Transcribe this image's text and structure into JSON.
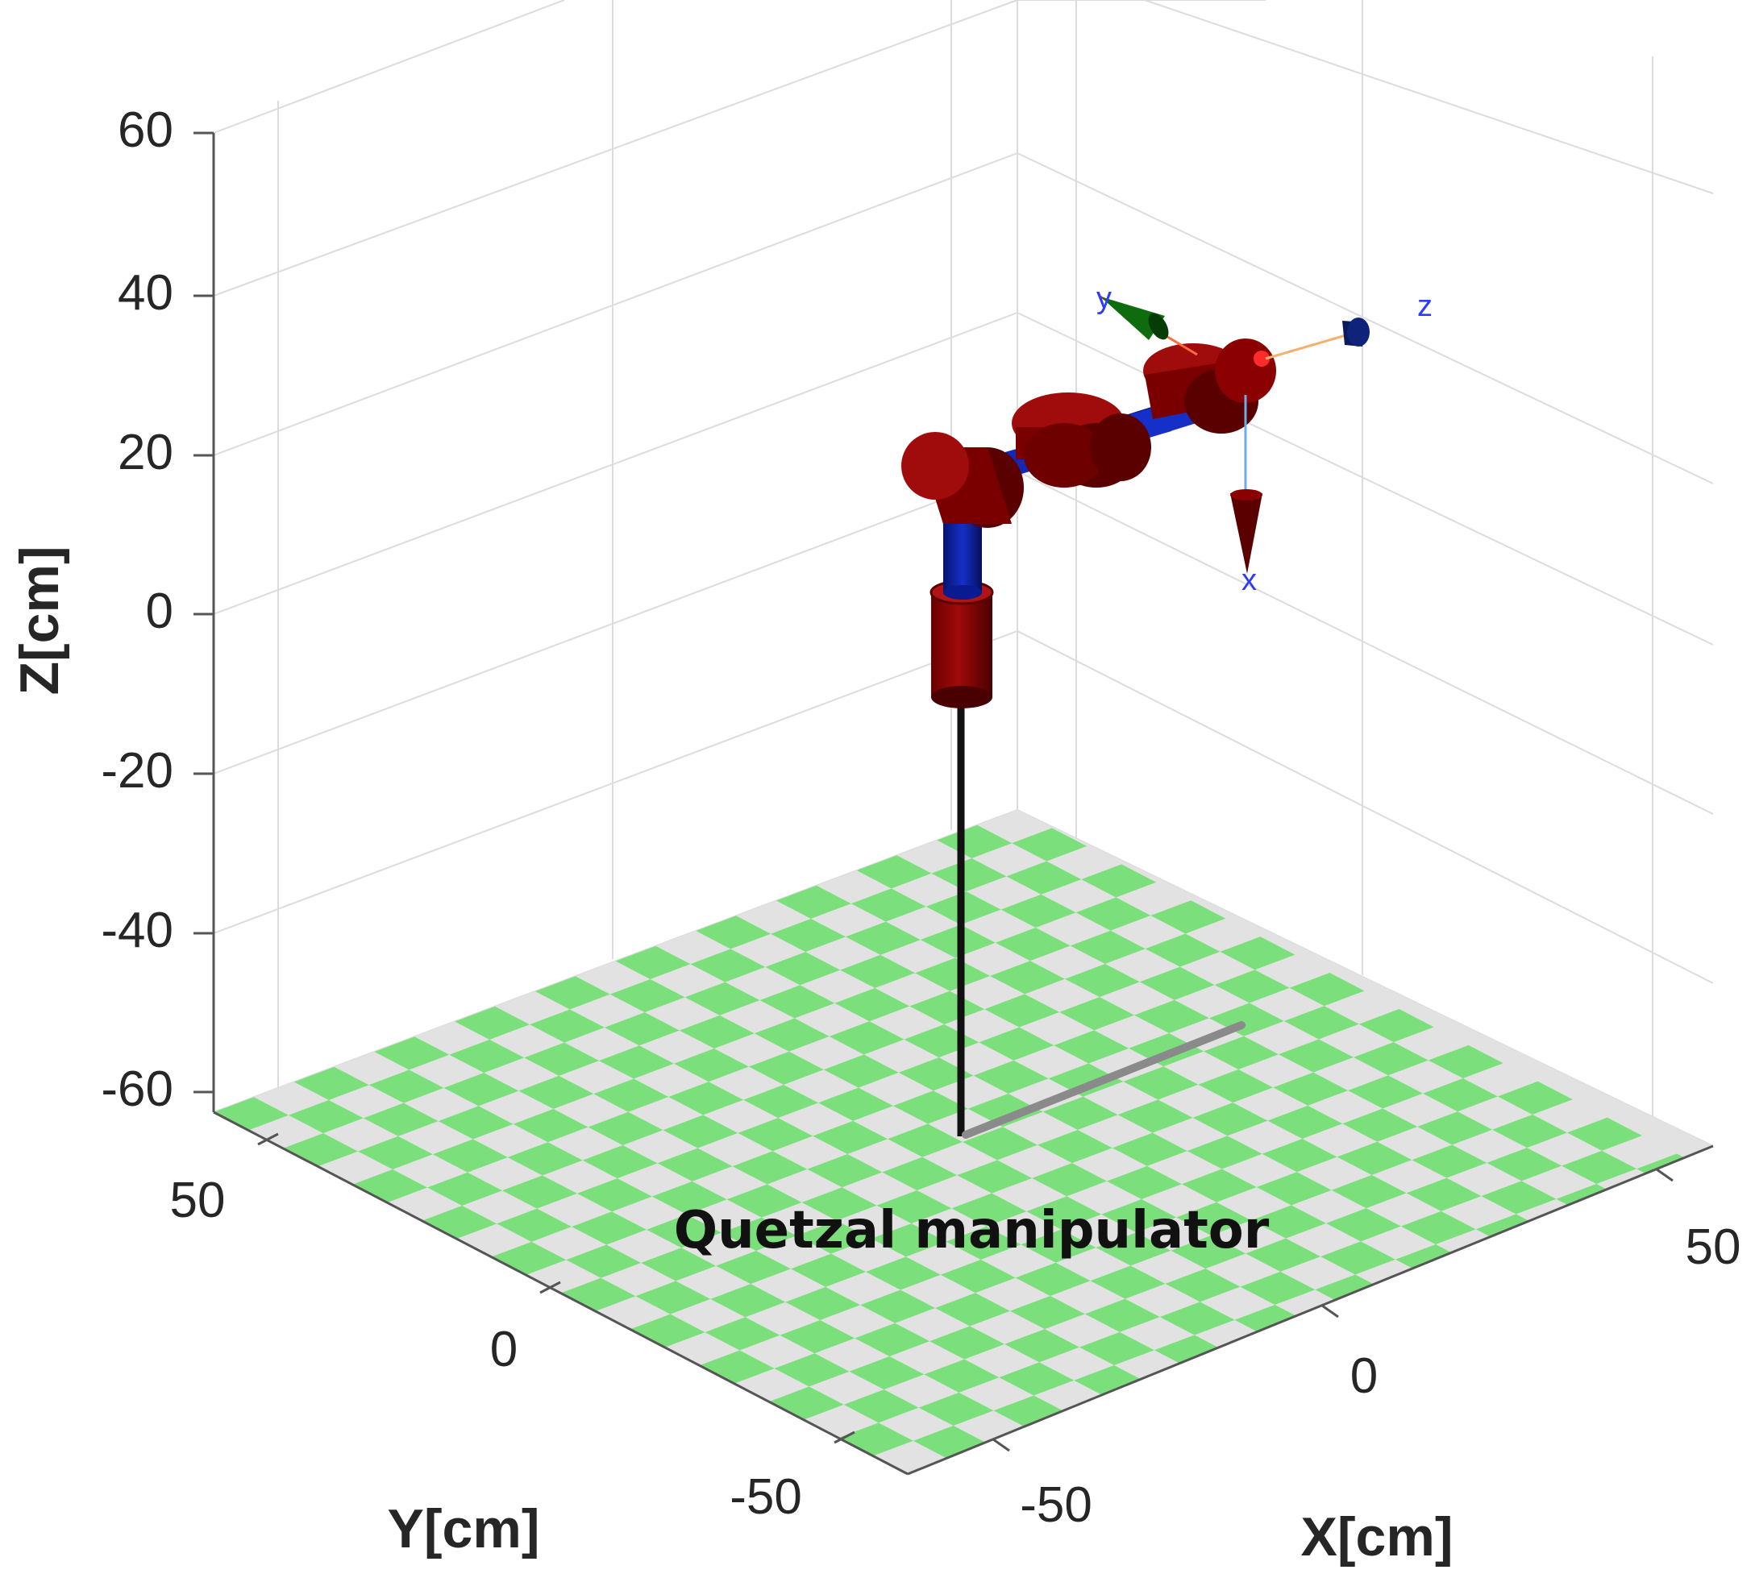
{
  "figure": {
    "caption": "Quetzal manipulator",
    "axes": {
      "x": {
        "label": "X[cm]",
        "ticks": [
          "-50",
          "0",
          "50"
        ]
      },
      "y": {
        "label": "Y[cm]",
        "ticks": [
          "50",
          "0",
          "-50"
        ]
      },
      "z": {
        "label": "Z[cm]",
        "ticks": [
          "60",
          "40",
          "20",
          "0",
          "-20",
          "-40",
          "-60"
        ]
      }
    },
    "frame_labels": {
      "x": "x",
      "y": "y",
      "z": "z"
    },
    "colors": {
      "floor_green": "#7be07b",
      "floor_gray": "#e2e2e2",
      "joint_red": "#8b0000",
      "link_blue": "#0a1fa8",
      "frame_y_green": "#0e6b0e",
      "frame_z_navy": "#0b1a5c",
      "frame_x_dark_red": "#5a0000"
    }
  }
}
